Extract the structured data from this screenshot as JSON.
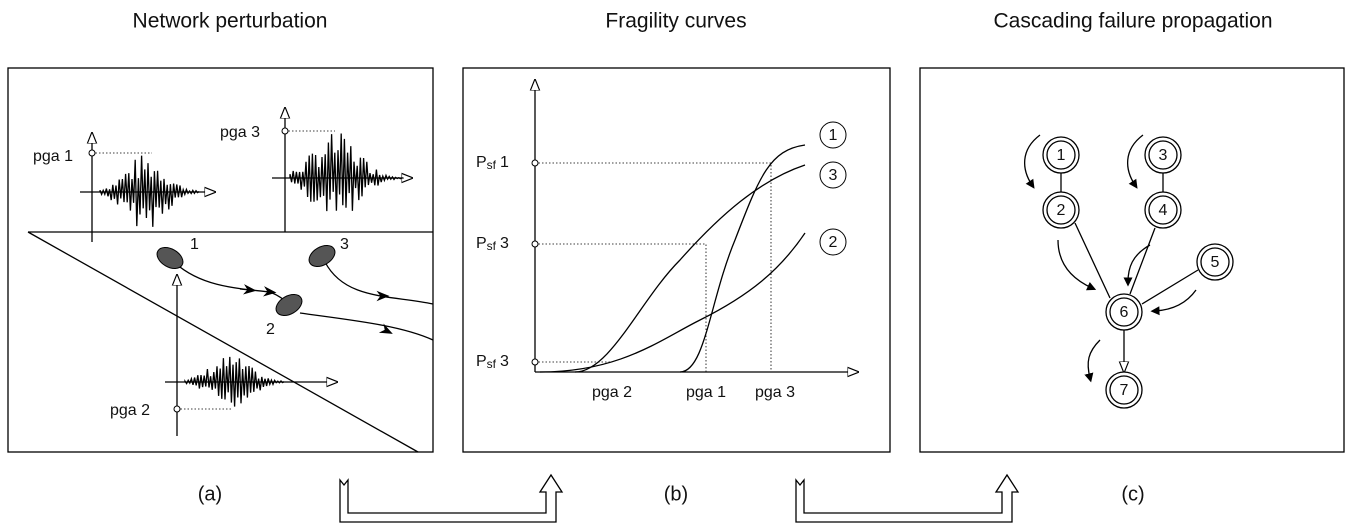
{
  "panels": [
    {
      "title": "Network perturbation",
      "caption": "(a)"
    },
    {
      "title": "Fragility curves",
      "caption": "(b)"
    },
    {
      "title": "Cascading failure propagation",
      "caption": "(c)"
    }
  ],
  "perturbation": {
    "pga_labels": [
      "pga 1",
      "pga 3",
      "pga 2"
    ],
    "sites": [
      "1",
      "2",
      "3"
    ]
  },
  "fragility": {
    "y_labels": [
      {
        "symbol": "P",
        "subscript": "sf",
        "index": "1"
      },
      {
        "symbol": "P",
        "subscript": "sf",
        "index": "3"
      },
      {
        "symbol": "P",
        "subscript": "sf",
        "index": "3"
      }
    ],
    "x_labels": [
      "pga 2",
      "pga 1",
      "pga 3"
    ],
    "curve_labels": [
      "1",
      "3",
      "2"
    ]
  },
  "cascade": {
    "nodes": [
      "1",
      "2",
      "3",
      "4",
      "5",
      "6",
      "7"
    ]
  }
}
